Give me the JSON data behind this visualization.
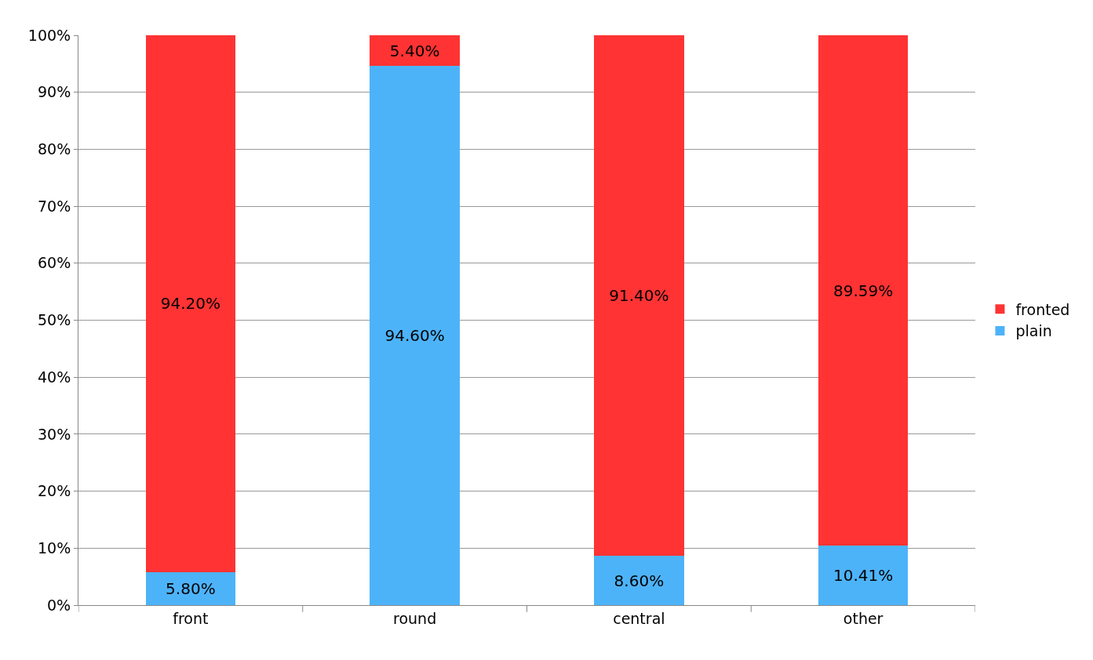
{
  "chart_data": {
    "type": "bar",
    "stacked": true,
    "categories": [
      "front",
      "round",
      "central",
      "other"
    ],
    "series": [
      {
        "name": "plain",
        "color": "#4db3f9",
        "values": [
          5.8,
          94.6,
          8.6,
          10.41
        ],
        "value_labels": [
          "5.80%",
          "94.60%",
          "8.60%",
          "10.41%"
        ]
      },
      {
        "name": "fronted",
        "color": "#ff3333",
        "values": [
          94.2,
          5.4,
          91.4,
          89.59
        ],
        "value_labels": [
          "94.20%",
          "5.40%",
          "91.40%",
          "89.59%"
        ]
      }
    ],
    "ylim": [
      0,
      100
    ],
    "yticks": [
      {
        "value": 0,
        "label": "0%"
      },
      {
        "value": 10,
        "label": "10%"
      },
      {
        "value": 20,
        "label": "20%"
      },
      {
        "value": 30,
        "label": "30%"
      },
      {
        "value": 40,
        "label": "40%"
      },
      {
        "value": 50,
        "label": "50%"
      },
      {
        "value": 60,
        "label": "60%"
      },
      {
        "value": 70,
        "label": "70%"
      },
      {
        "value": 80,
        "label": "80%"
      },
      {
        "value": 90,
        "label": "90%"
      },
      {
        "value": 100,
        "label": "100%"
      }
    ],
    "grid": "y",
    "legend": "right"
  }
}
